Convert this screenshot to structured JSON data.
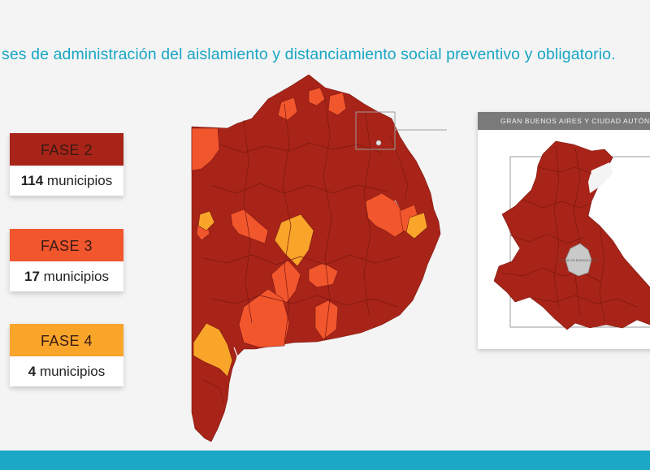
{
  "title": "ses de administración del aislamiento y distanciamiento social preventivo y obligatorio.",
  "legend": [
    {
      "phase": "FASE 2",
      "count": "114",
      "unit": "municipios",
      "color": "#a82418"
    },
    {
      "phase": "FASE 3",
      "count": "17",
      "unit": "municipios",
      "color": "#f2562d"
    },
    {
      "phase": "FASE 4",
      "count": "4",
      "unit": "municipios",
      "color": "#f8a52a"
    }
  ],
  "inset": {
    "header": "GRAN BUENOS AIRES Y CIUDAD AUTÓNOMA",
    "city_label": "CIUDAD DE BUENOS AIRES"
  },
  "colors": {
    "fase2": "#a82418",
    "fase3": "#f2562d",
    "fase4": "#f8a52a",
    "accent": "#17a6c4",
    "caba": "#c9c9c9"
  }
}
